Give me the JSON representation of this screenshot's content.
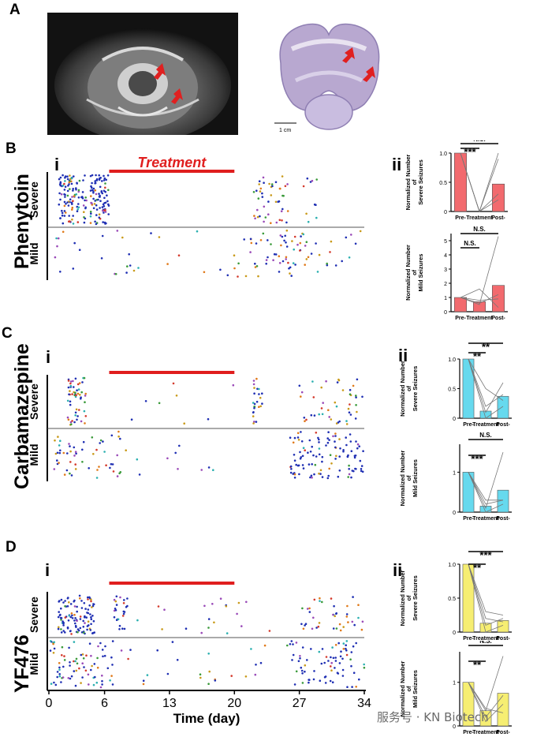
{
  "panel_labels": {
    "A": "A",
    "B": "B",
    "C": "C",
    "D": "D"
  },
  "sub_labels": {
    "i": "i",
    "ii": "ii"
  },
  "scale_bar_label": "1 cm",
  "raster": {
    "treatment_label": "Treatment",
    "severe_label": "Severe",
    "mild_label": "Mild",
    "xlabel": "Time (day)",
    "x_ticks": [
      "0",
      "6",
      "13",
      "20",
      "27",
      "34"
    ]
  },
  "drugs": [
    {
      "name": "Phenytoin",
      "color": "#f26a6e",
      "treatment_days": [
        6.5,
        20
      ]
    },
    {
      "name": "Carbamazepine",
      "color": "#66d9ee",
      "treatment_days": [
        6.5,
        20
      ]
    },
    {
      "name": "YF476",
      "color": "#f6ee72",
      "treatment_days": [
        6.5,
        20
      ]
    }
  ],
  "bar_axis_labels": {
    "severe": [
      "Normalized Number",
      "of",
      "Severe Seizures"
    ],
    "mild": [
      "Normalized Number",
      "of",
      "Mild Seizures"
    ]
  },
  "chart_data": [
    {
      "type": "bar",
      "panel": "B-ii-top",
      "categories": [
        "Pre-",
        "Treatment",
        "Post-"
      ],
      "values": [
        1.0,
        0.0,
        0.47
      ],
      "ylim": [
        0,
        1
      ],
      "yticks": [
        "0",
        "0.5",
        "1.0"
      ],
      "significance": [
        "***",
        "N.S."
      ]
    },
    {
      "type": "bar",
      "panel": "B-ii-bottom",
      "categories": [
        "Pre-",
        "Treatment",
        "Post-"
      ],
      "values": [
        1.0,
        0.7,
        1.85
      ],
      "ylim": [
        0,
        5.5
      ],
      "yticks": [
        "0",
        "1",
        "2",
        "3",
        "4",
        "5"
      ],
      "significance": [
        "N.S.",
        "N.S."
      ]
    },
    {
      "type": "bar",
      "panel": "C-ii-top",
      "categories": [
        "Pre-",
        "Treatment",
        "Post-"
      ],
      "values": [
        1.0,
        0.12,
        0.37
      ],
      "ylim": [
        0,
        1
      ],
      "yticks": [
        "0",
        "0.5",
        "1.0"
      ],
      "significance": [
        "**",
        "**"
      ]
    },
    {
      "type": "bar",
      "panel": "C-ii-bottom",
      "categories": [
        "Pre-",
        "Treatment",
        "Post-"
      ],
      "values": [
        1.0,
        0.15,
        0.55
      ],
      "ylim": [
        0,
        1.7
      ],
      "yticks": [
        "0",
        "1"
      ],
      "significance": [
        "***",
        "N.S."
      ]
    },
    {
      "type": "bar",
      "panel": "D-ii-top",
      "categories": [
        "Pre-",
        "Treatment",
        "Post-"
      ],
      "values": [
        1.0,
        0.13,
        0.17
      ],
      "ylim": [
        0,
        1
      ],
      "yticks": [
        "0",
        "0.5",
        "1.0"
      ],
      "significance": [
        "**",
        "***"
      ]
    },
    {
      "type": "bar",
      "panel": "D-ii-bottom",
      "categories": [
        "Pre-",
        "Treatment",
        "Post-"
      ],
      "values": [
        1.0,
        0.35,
        0.75
      ],
      "ylim": [
        0,
        1.7
      ],
      "yticks": [
        "0",
        "1"
      ],
      "significance": [
        "**",
        "N.S."
      ]
    }
  ],
  "watermark": "服务号 · KN Biotech"
}
